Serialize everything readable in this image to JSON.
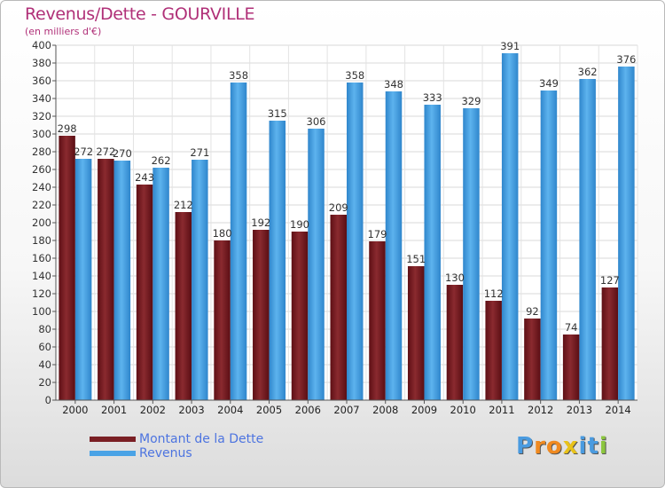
{
  "title": "Revenus/Dette - GOURVILLE",
  "subtitle": "(en milliers d'€)",
  "logo": {
    "text": "Proxiti",
    "letters": [
      "P",
      "r",
      "o",
      "x",
      "i",
      "t",
      "i"
    ],
    "colors": [
      "#4a9be0",
      "#f08a20",
      "#f08a20",
      "#e8c21a",
      "#4a9be0",
      "#4a9be0",
      "#8cc63e"
    ]
  },
  "colors": {
    "dette": "#7a1f24",
    "revenus": "#4aa3e6",
    "title": "#b03078",
    "legend_text": "#4d74e0"
  },
  "chart_data": {
    "type": "bar",
    "title": "Revenus/Dette - GOURVILLE",
    "ylabel": "(en milliers d'€)",
    "xlabel": "",
    "ylim": [
      0,
      400
    ],
    "ytick_step": 20,
    "grid": true,
    "legend_position": "bottom-left",
    "categories": [
      "2000",
      "2001",
      "2002",
      "2003",
      "2004",
      "2005",
      "2006",
      "2007",
      "2008",
      "2009",
      "2010",
      "2011",
      "2012",
      "2013",
      "2014"
    ],
    "series": [
      {
        "name": "Montant de la Dette",
        "values": [
          298,
          272,
          243,
          212,
          180,
          192,
          190,
          209,
          179,
          151,
          130,
          112,
          92,
          74,
          127
        ]
      },
      {
        "name": "Revenus",
        "values": [
          272,
          270,
          262,
          271,
          358,
          315,
          306,
          358,
          348,
          333,
          329,
          391,
          349,
          362,
          376
        ]
      }
    ]
  }
}
